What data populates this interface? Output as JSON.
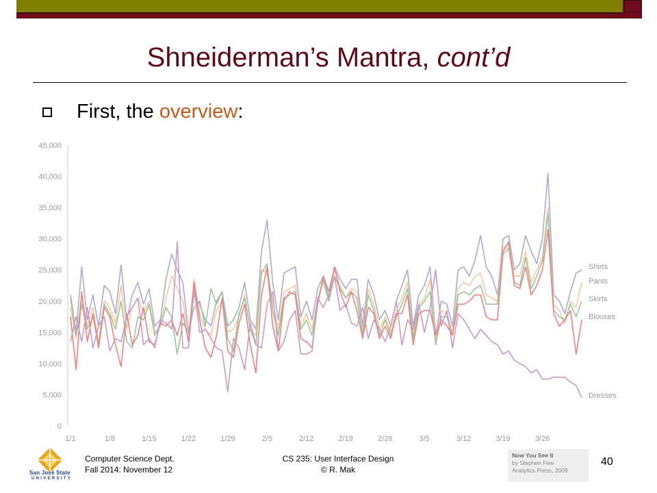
{
  "slide": {
    "title_main": "Shneiderman’s Mantra, ",
    "title_ital": "cont’d",
    "bullet_prefix": "First, the ",
    "bullet_accent": "overview",
    "bullet_suffix": ":",
    "page_number": "40"
  },
  "footer": {
    "left_line1": "Computer Science Dept.",
    "left_line2": "Fall 2014: November 12",
    "mid_line1": "CS 235: User Interface Design",
    "mid_line2": "© R. Mak",
    "logo_name": "San José State",
    "logo_sub": "UNIVERSITY",
    "credit_line1": "Now You See It",
    "credit_line2": "by Stephen Few",
    "credit_line3": "Analytics Press, 2009"
  },
  "colors": {
    "title": "#5e0a16",
    "accent": "#c65a1b",
    "topbar": "#6e0c1e",
    "Shirts": "#a9a9d6",
    "Pants": "#f7c89a",
    "Skirts": "#97c697",
    "Blouses": "#f08080",
    "Dresses": "#c899c9"
  },
  "chart_data": {
    "type": "line",
    "xlabel": "",
    "ylabel": "",
    "ylim": [
      0,
      45000
    ],
    "yticks": [
      "0",
      "5,000",
      "10,000",
      "15,000",
      "20,000",
      "25,000",
      "30,000",
      "35,000",
      "40,000",
      "45,000"
    ],
    "ytick_values": [
      0,
      5000,
      10000,
      15000,
      20000,
      25000,
      30000,
      35000,
      40000,
      45000
    ],
    "x": [
      "1/1",
      "1/2",
      "1/3",
      "1/4",
      "1/5",
      "1/6",
      "1/7",
      "1/8",
      "1/9",
      "1/10",
      "1/11",
      "1/12",
      "1/13",
      "1/14",
      "1/15",
      "1/16",
      "1/17",
      "1/18",
      "1/19",
      "1/20",
      "1/21",
      "1/22",
      "1/23",
      "1/24",
      "1/25",
      "1/26",
      "1/27",
      "1/28",
      "1/29",
      "1/30",
      "1/31",
      "2/1",
      "2/2",
      "2/3",
      "2/4",
      "2/5",
      "2/6",
      "2/7",
      "2/8",
      "2/9",
      "2/10",
      "2/11",
      "2/12",
      "2/13",
      "2/14",
      "2/15",
      "2/16",
      "2/17",
      "2/18",
      "2/19",
      "2/20",
      "2/21",
      "2/22",
      "2/23",
      "2/24",
      "2/25",
      "2/26",
      "2/27",
      "2/28",
      "3/1",
      "3/2",
      "3/3",
      "3/4",
      "3/5",
      "3/6",
      "3/7",
      "3/8",
      "3/9",
      "3/10",
      "3/11",
      "3/12",
      "3/13",
      "3/14",
      "3/15",
      "3/16",
      "3/17",
      "3/18",
      "3/19",
      "3/20",
      "3/21",
      "3/22",
      "3/23",
      "3/24",
      "3/25",
      "3/26",
      "3/27",
      "3/28",
      "3/29",
      "3/30",
      "3/31",
      "4/1",
      "4/2"
    ],
    "xticks": [
      "1/1",
      "1/8",
      "1/15",
      "1/22",
      "1/29",
      "2/5",
      "2/12",
      "2/19",
      "2/26",
      "3/5",
      "3/12",
      "3/19",
      "3/26"
    ],
    "grid": false,
    "legend": "line-end labels",
    "series": [
      {
        "name": "Shirts",
        "values": [
          21000,
          15000,
          25500,
          17000,
          21000,
          16000,
          22500,
          21500,
          18000,
          25800,
          17000,
          21000,
          23000,
          19500,
          22000,
          16000,
          17000,
          23500,
          27500,
          25000,
          23000,
          15000,
          21000,
          19500,
          17000,
          16000,
          20000,
          21500,
          16000,
          17000,
          19000,
          23000,
          17000,
          15500,
          28000,
          33000,
          23000,
          17000,
          24500,
          25000,
          25500,
          17500,
          20000,
          17000,
          22000,
          24000,
          20500,
          25500,
          23500,
          22000,
          23500,
          23500,
          16000,
          23500,
          21000,
          17000,
          18500,
          16000,
          20000,
          22500,
          25000,
          16000,
          21000,
          22500,
          25500,
          14500,
          20000,
          19500,
          16000,
          25000,
          25500,
          24000,
          26500,
          30500,
          25500,
          24000,
          21000,
          30000,
          30500,
          25000,
          26000,
          30500,
          28000,
          26000,
          30000,
          40500,
          21000,
          20000,
          18000,
          21500,
          24500,
          25000
        ]
      },
      {
        "name": "Pants",
        "values": [
          19000,
          14000,
          21000,
          16000,
          19000,
          13500,
          20000,
          19000,
          16500,
          22500,
          15500,
          19000,
          20500,
          18000,
          20000,
          15000,
          16000,
          20500,
          24000,
          22000,
          20000,
          14500,
          23500,
          18000,
          15500,
          14500,
          18500,
          20000,
          15000,
          15500,
          17500,
          21000,
          15500,
          14500,
          25000,
          24500,
          20000,
          15500,
          21500,
          22000,
          22500,
          16000,
          18000,
          15500,
          20500,
          23000,
          20000,
          25000,
          22500,
          20500,
          22000,
          21500,
          15000,
          22000,
          19500,
          15500,
          17500,
          15000,
          18500,
          20500,
          23000,
          14500,
          19500,
          20500,
          23500,
          13500,
          18500,
          18000,
          15000,
          22000,
          23000,
          22500,
          24000,
          24500,
          21000,
          20500,
          20000,
          28500,
          29000,
          24000,
          24000,
          28000,
          23000,
          25000,
          27000,
          35000,
          19500,
          18500,
          16500,
          20000,
          19000,
          23000
        ]
      },
      {
        "name": "Skirts",
        "values": [
          20500,
          14500,
          19500,
          15500,
          17500,
          13000,
          19500,
          18000,
          15500,
          20000,
          13500,
          12500,
          17500,
          17000,
          19500,
          14500,
          16000,
          19000,
          17500,
          11500,
          16500,
          15000,
          19000,
          20000,
          16000,
          22000,
          19500,
          21500,
          14000,
          12000,
          18000,
          20500,
          15500,
          13000,
          24500,
          26000,
          18500,
          14500,
          20500,
          21000,
          21500,
          15500,
          17000,
          14500,
          20000,
          23500,
          20000,
          24000,
          22000,
          20500,
          21500,
          20500,
          14500,
          21000,
          18500,
          14500,
          17000,
          14500,
          17500,
          19500,
          22000,
          14000,
          19000,
          20000,
          21500,
          13000,
          17500,
          17500,
          14500,
          21000,
          21500,
          21000,
          22000,
          22500,
          19500,
          19500,
          19500,
          27500,
          28500,
          23000,
          22500,
          27000,
          22000,
          24000,
          26500,
          34000,
          18500,
          17500,
          17000,
          19500,
          17500,
          20000
        ]
      },
      {
        "name": "Blouses",
        "values": [
          17500,
          9000,
          21500,
          13500,
          18000,
          12500,
          19000,
          17500,
          13000,
          9500,
          18000,
          13000,
          14500,
          19000,
          13500,
          13000,
          16500,
          16000,
          17000,
          14500,
          18000,
          13500,
          23000,
          17000,
          12500,
          11000,
          14500,
          20500,
          12000,
          11000,
          16500,
          19500,
          13000,
          8500,
          21000,
          25500,
          16000,
          12000,
          20000,
          21500,
          21000,
          14000,
          13500,
          12500,
          19500,
          24000,
          21500,
          25500,
          21500,
          19000,
          21500,
          18500,
          14000,
          19000,
          18000,
          14000,
          16000,
          14000,
          18000,
          18000,
          21000,
          13000,
          18000,
          18500,
          18500,
          14500,
          17000,
          16000,
          14500,
          19500,
          19500,
          20000,
          21000,
          21000,
          17500,
          17000,
          17000,
          28000,
          29500,
          22500,
          22000,
          25500,
          21000,
          22500,
          25000,
          31500,
          18000,
          16000,
          17000,
          18500,
          11500,
          17000
        ]
      },
      {
        "name": "Dresses",
        "values": [
          13500,
          17500,
          13500,
          19000,
          12500,
          16000,
          17500,
          12000,
          14000,
          13500,
          17500,
          19000,
          20500,
          13000,
          14000,
          12500,
          17000,
          16500,
          15500,
          29500,
          12500,
          12500,
          22000,
          15000,
          15500,
          14000,
          12500,
          12000,
          5500,
          14000,
          12500,
          9000,
          16500,
          13000,
          12500,
          19500,
          21500,
          12000,
          13500,
          17000,
          18500,
          11500,
          11500,
          12000,
          20500,
          19000,
          21000,
          24000,
          18500,
          19500,
          16500,
          16000,
          19000,
          14000,
          17000,
          15500,
          13500,
          16000,
          20000,
          13000,
          17000,
          15500,
          19500,
          15000,
          19000,
          25000,
          16000,
          18500,
          12500,
          18000,
          17000,
          15500,
          14000,
          15500,
          14500,
          13500,
          13000,
          11500,
          12000,
          10500,
          10000,
          9500,
          8500,
          9000,
          7500,
          7500,
          7800,
          7800,
          7800,
          7000,
          6500,
          4500
        ]
      }
    ]
  }
}
